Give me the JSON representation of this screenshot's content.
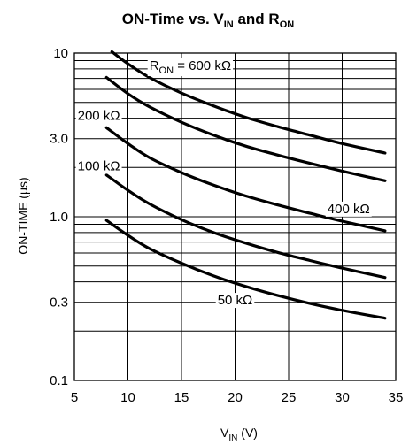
{
  "chart_data": {
    "type": "line",
    "title": {
      "main": "ON-Time vs. V",
      "sub1": "IN",
      "mid": " and R",
      "sub2": "ON"
    },
    "xlabel": {
      "main": "V",
      "sub": "IN",
      "rest": " (V)"
    },
    "ylabel": "ON-TIME (μs)",
    "xlim": [
      5,
      35
    ],
    "ylim": [
      0.1,
      10
    ],
    "yscale": "log",
    "grid": true,
    "x_ticks": [
      5,
      10,
      15,
      20,
      25,
      30,
      35
    ],
    "x_tick_labels": [
      "5",
      "10",
      "15",
      "20",
      "25",
      "30",
      "35"
    ],
    "y_ticks": [
      0.1,
      0.3,
      1.0,
      3.0,
      10
    ],
    "y_tick_labels": [
      "0.1",
      "0.3",
      "1.0",
      "3.0",
      "10"
    ],
    "series": [
      {
        "name": "R_ON = 600 kΩ",
        "label_main": "R",
        "label_sub": "ON",
        "label_rest": " = 600 kΩ",
        "x": [
          8.5,
          10,
          12,
          15,
          18,
          21,
          24,
          27,
          30,
          34
        ],
        "y": [
          10.2,
          8.6,
          7.1,
          5.7,
          4.75,
          4.05,
          3.55,
          3.15,
          2.8,
          2.45
        ]
      },
      {
        "name": "400 kΩ",
        "label_main": "400 kΩ",
        "x": [
          8,
          10,
          12,
          15,
          18,
          21,
          24,
          27,
          30,
          34
        ],
        "y": [
          7.1,
          5.65,
          4.7,
          3.78,
          3.15,
          2.7,
          2.38,
          2.12,
          1.9,
          1.66
        ]
      },
      {
        "name": "200 kΩ",
        "label_main": "200 kΩ",
        "x": [
          8,
          10,
          12,
          15,
          18,
          21,
          24,
          27,
          30,
          34
        ],
        "y": [
          3.5,
          2.8,
          2.3,
          1.86,
          1.56,
          1.34,
          1.18,
          1.05,
          0.94,
          0.82
        ]
      },
      {
        "name": "100 kΩ",
        "label_main": "100 kΩ",
        "x": [
          8,
          10,
          12,
          15,
          18,
          21,
          24,
          27,
          30,
          34
        ],
        "y": [
          1.8,
          1.45,
          1.2,
          0.96,
          0.8,
          0.69,
          0.605,
          0.54,
          0.485,
          0.425
        ]
      },
      {
        "name": "50 kΩ",
        "label_main": "50 kΩ",
        "x": [
          8,
          10,
          12,
          15,
          18,
          21,
          24,
          27,
          30,
          34
        ],
        "y": [
          0.95,
          0.77,
          0.64,
          0.52,
          0.435,
          0.375,
          0.33,
          0.295,
          0.268,
          0.24
        ]
      }
    ],
    "annotations": [
      {
        "series_index": 0,
        "x": 12.0,
        "y": 8.4,
        "anchor": "start"
      },
      {
        "series_index": 2,
        "x": 5.3,
        "y": 4.15,
        "anchor": "start"
      },
      {
        "series_index": 3,
        "x": 5.3,
        "y": 2.05,
        "anchor": "start"
      },
      {
        "series_index": 1,
        "x": 30.6,
        "y": 1.12,
        "anchor": "middle"
      },
      {
        "series_index": 4,
        "x": 20.0,
        "y": 0.31,
        "anchor": "middle"
      }
    ]
  }
}
